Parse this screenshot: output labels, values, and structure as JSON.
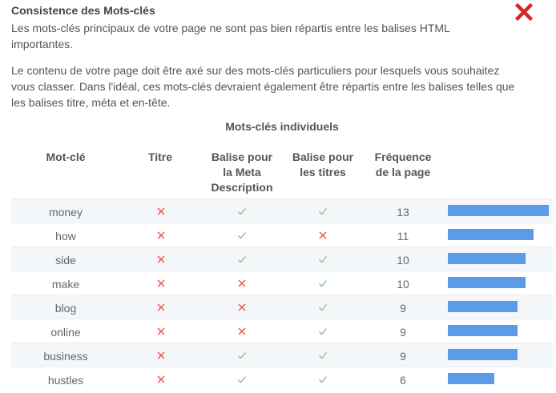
{
  "header": {
    "title": "Consistence des Mots-clés",
    "status_icon": "close-icon",
    "status_color": "#d9262c"
  },
  "intro": "Les mots-clés principaux de votre page ne sont pas bien répartis entre les balises HTML importantes.",
  "body": "Le contenu de votre page doit être axé sur des mots-clés particuliers pour lesquels vous souhaitez vous classer. Dans l'idéal, ces mots-clés devraient également être répartis entre les balises telles que les balises titre, méta et en-tête.",
  "table": {
    "title": "Mots-clés individuels",
    "columns": [
      "Mot-clé",
      "Titre",
      "Balise pour la Meta Description",
      "Balise pour les titres",
      "Fréquence de la page"
    ],
    "colors": {
      "check": "#7cc576",
      "cross": "#e84d4d",
      "bar": "#5b9be8"
    },
    "rows": [
      {
        "keyword": "money",
        "title": false,
        "meta": true,
        "headings": true,
        "frequency": 13
      },
      {
        "keyword": "how",
        "title": false,
        "meta": true,
        "headings": false,
        "frequency": 11
      },
      {
        "keyword": "side",
        "title": false,
        "meta": true,
        "headings": true,
        "frequency": 10
      },
      {
        "keyword": "make",
        "title": false,
        "meta": false,
        "headings": true,
        "frequency": 10
      },
      {
        "keyword": "blog",
        "title": false,
        "meta": false,
        "headings": true,
        "frequency": 9
      },
      {
        "keyword": "online",
        "title": false,
        "meta": false,
        "headings": true,
        "frequency": 9
      },
      {
        "keyword": "business",
        "title": false,
        "meta": true,
        "headings": true,
        "frequency": 9
      },
      {
        "keyword": "hustles",
        "title": false,
        "meta": true,
        "headings": true,
        "frequency": 6
      }
    ]
  }
}
